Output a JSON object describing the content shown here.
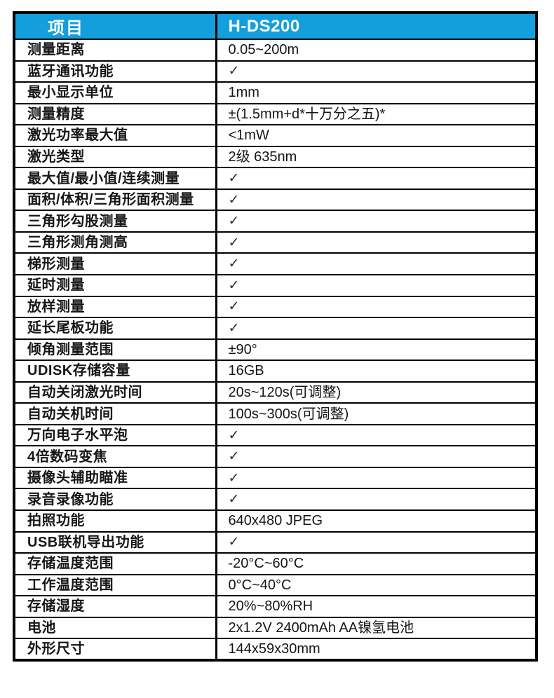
{
  "table": {
    "header": {
      "item": "项目",
      "model": "H-DS200"
    },
    "rows": [
      {
        "label": "测量距离",
        "value": "0.05~200m"
      },
      {
        "label": "蓝牙通讯功能",
        "value": "✓"
      },
      {
        "label": "最小显示单位",
        "value": "1mm"
      },
      {
        "label": "测量精度",
        "value": "±(1.5mm+d*十万分之五)*"
      },
      {
        "label": "激光功率最大值",
        "value": "<1mW"
      },
      {
        "label": "激光类型",
        "value": "2级 635nm"
      },
      {
        "label": "最大值/最小值/连续测量",
        "value": "✓"
      },
      {
        "label": "面积/体积/三角形面积测量",
        "value": "✓"
      },
      {
        "label": "三角形勾股测量",
        "value": "✓"
      },
      {
        "label": "三角形测角测高",
        "value": "✓"
      },
      {
        "label": "梯形测量",
        "value": "✓"
      },
      {
        "label": "延时测量",
        "value": "✓"
      },
      {
        "label": "放样测量",
        "value": "✓"
      },
      {
        "label": "延长尾板功能",
        "value": "✓"
      },
      {
        "label": "倾角测量范围",
        "value": "±90°"
      },
      {
        "label": "UDISK存储容量",
        "value": "16GB"
      },
      {
        "label": "自动关闭激光时间",
        "value": "20s~120s(可调整)"
      },
      {
        "label": "自动关机时间",
        "value": "100s~300s(可调整)"
      },
      {
        "label": "万向电子水平泡",
        "value": "✓"
      },
      {
        "label": "4倍数码变焦",
        "value": "✓"
      },
      {
        "label": "摄像头辅助瞄准",
        "value": "✓"
      },
      {
        "label": "录音录像功能",
        "value": "✓"
      },
      {
        "label": "拍照功能",
        "value": "640x480 JPEG"
      },
      {
        "label": "USB联机导出功能",
        "value": "✓"
      },
      {
        "label": "存储温度范围",
        "value": "-20°C~60°C"
      },
      {
        "label": "工作温度范围",
        "value": "0°C~40°C"
      },
      {
        "label": "存储湿度",
        "value": "20%~80%RH"
      },
      {
        "label": "电池",
        "value": "2x1.2V 2400mAh AA镍氢电池"
      },
      {
        "label": "外形尺寸",
        "value": "144x59x30mm"
      }
    ]
  },
  "icons": {
    "check": "✓"
  },
  "colors": {
    "header_bg": "#149EDC",
    "header_text": "#FFFFFF",
    "border": "#000000",
    "body_text": "#161616"
  }
}
